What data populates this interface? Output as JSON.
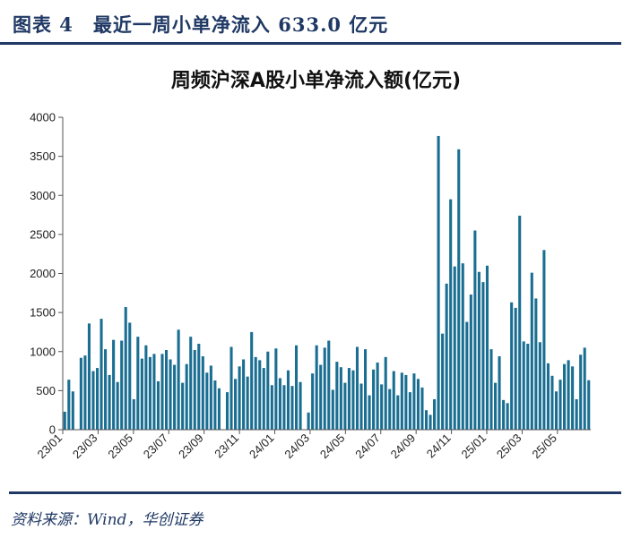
{
  "header": {
    "figure_label": "图表 4　最近一周小单净流入 633.0 亿元"
  },
  "footer": {
    "source": "资料来源：Wind，华创证券"
  },
  "colors": {
    "bar": "#1a6e92",
    "accent": "#1f3864"
  },
  "chart_data": {
    "type": "bar",
    "title": "周频沪深A股小单净流入额(亿元)",
    "xlabel": "",
    "ylabel": "",
    "ylim": [
      0,
      4000
    ],
    "yticks": [
      0,
      500,
      1000,
      1500,
      2000,
      2500,
      3000,
      3500,
      4000
    ],
    "xtick_labels": [
      "23/01",
      "23/03",
      "23/05",
      "23/07",
      "23/09",
      "23/11",
      "24/01",
      "24/03",
      "24/05",
      "24/07",
      "24/09",
      "24/11",
      "25/01",
      "25/03",
      "25/05"
    ],
    "xtick_interval_weeks": 8.7,
    "series": [
      {
        "name": "小单净流入额",
        "values": [
          230,
          640,
          490,
          0,
          920,
          950,
          1360,
          750,
          790,
          1420,
          1030,
          700,
          1150,
          610,
          1140,
          1570,
          1370,
          390,
          1190,
          910,
          1080,
          930,
          970,
          620,
          970,
          1020,
          900,
          830,
          1280,
          600,
          840,
          1190,
          1020,
          1100,
          940,
          730,
          820,
          630,
          530,
          0,
          480,
          1060,
          650,
          810,
          900,
          680,
          1250,
          930,
          890,
          790,
          1000,
          570,
          1040,
          660,
          570,
          760,
          560,
          1080,
          610,
          0,
          220,
          720,
          1080,
          830,
          1050,
          1140,
          510,
          870,
          800,
          600,
          790,
          760,
          1060,
          590,
          1030,
          440,
          770,
          860,
          580,
          930,
          520,
          750,
          440,
          730,
          700,
          480,
          720,
          650,
          540,
          250,
          190,
          390,
          3760,
          1230,
          1870,
          2950,
          2090,
          3590,
          2130,
          1380,
          1730,
          2550,
          2020,
          1890,
          2100,
          1030,
          600,
          940,
          380,
          340,
          1630,
          1560,
          2740,
          1130,
          1100,
          2010,
          1680,
          1120,
          2300,
          850,
          690,
          490,
          640,
          840,
          890,
          810,
          390,
          960,
          1050,
          633
        ]
      }
    ]
  }
}
